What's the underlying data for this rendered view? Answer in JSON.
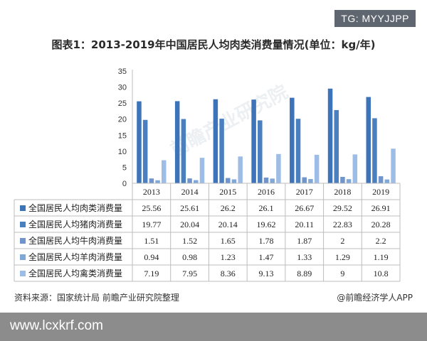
{
  "tag": "TG: MYYJJPP",
  "title": "图表1：2013-2019年中国居民人均肉类消费量情况(单位：kg/年)",
  "watermark": "前瞻产业研究院",
  "footer": {
    "source": "资料来源：国家统计局 前瞻产业研究院整理",
    "brand": "@前瞻经济学人APP"
  },
  "url_text": "www.lcxkrf.com",
  "colors": [
    "#3d73b8",
    "#4a7fc0",
    "#6f95cc",
    "#7fa7d8",
    "#9dbce6"
  ],
  "chart_data": {
    "type": "bar",
    "categories": [
      "2013",
      "2014",
      "2015",
      "2016",
      "2017",
      "2018",
      "2019"
    ],
    "ylim": [
      0,
      35
    ],
    "yticks": [
      0,
      5,
      10,
      15,
      20,
      25,
      30,
      35
    ],
    "grid": false,
    "legend": "table-bottom",
    "series": [
      {
        "name": "全国居民人均肉类消费量",
        "values": [
          25.56,
          25.61,
          26.2,
          26.1,
          26.67,
          29.52,
          26.91
        ]
      },
      {
        "name": "全国居民人均猪肉消费量",
        "values": [
          19.77,
          20.04,
          20.14,
          19.62,
          20.11,
          22.83,
          20.28
        ]
      },
      {
        "name": "全国居民人均牛肉消费量",
        "values": [
          1.51,
          1.52,
          1.65,
          1.78,
          1.87,
          2,
          2.2
        ]
      },
      {
        "name": "全国居民人均羊肉消费量",
        "values": [
          0.94,
          0.98,
          1.23,
          1.47,
          1.33,
          1.29,
          1.19
        ]
      },
      {
        "name": "全国居民人均禽类消费量",
        "values": [
          7.19,
          7.95,
          8.36,
          9.13,
          8.89,
          9,
          10.8
        ]
      }
    ]
  }
}
